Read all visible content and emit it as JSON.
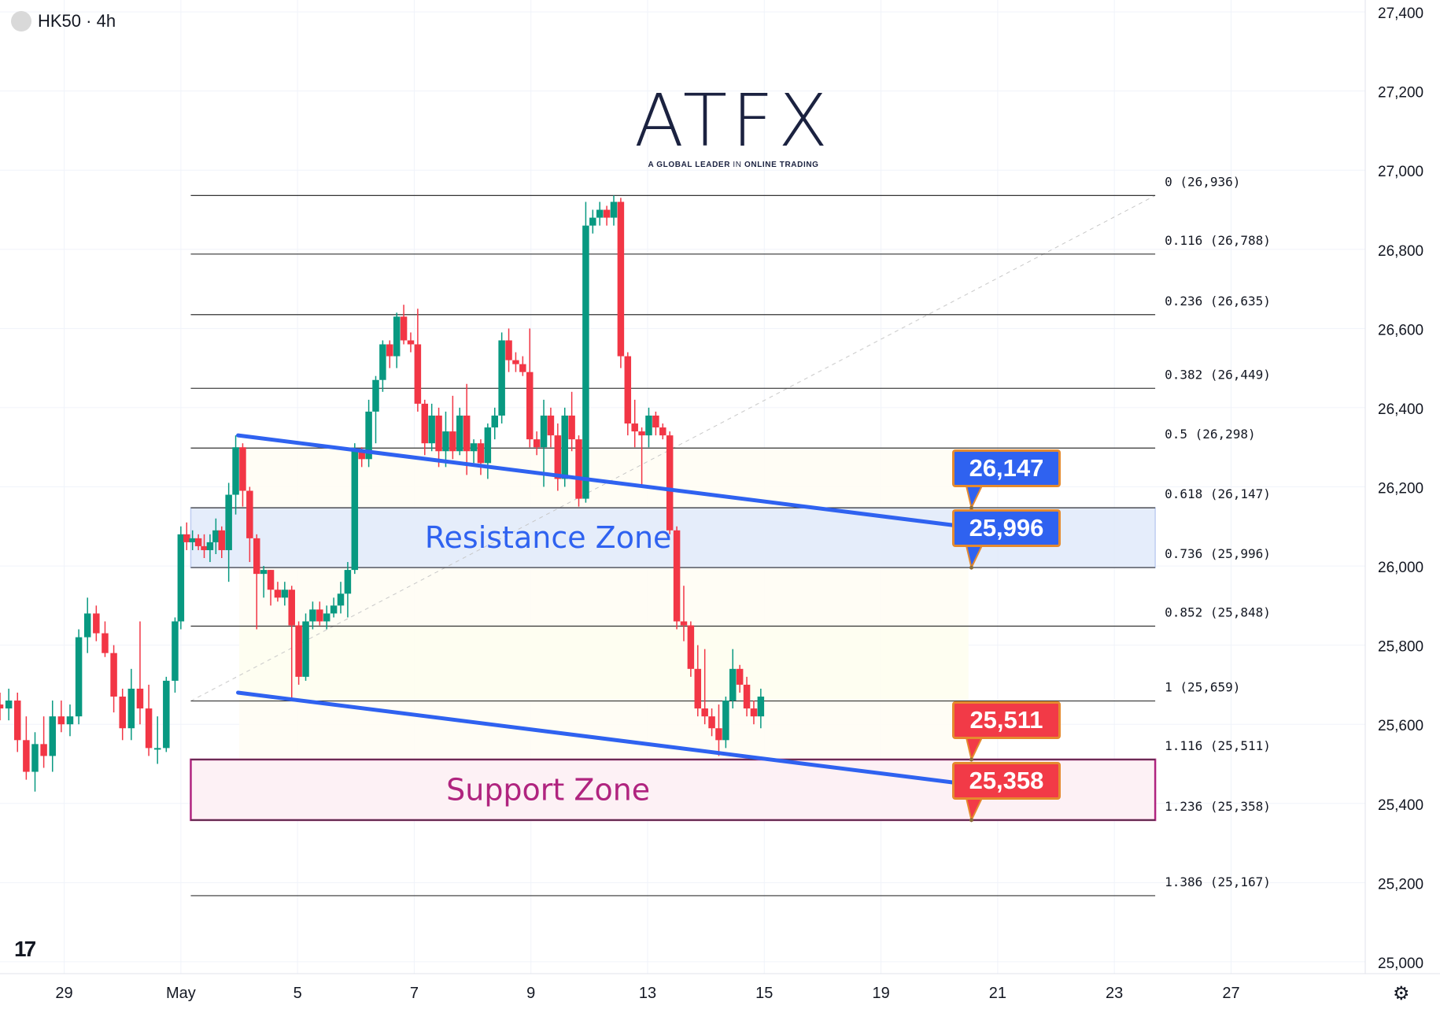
{
  "header": {
    "symbol": "HK50 · 4h"
  },
  "watermark": {
    "brand": "ATFX",
    "tagline_bold_1": "A GLOBAL LEADER",
    "tagline_thin": "IN",
    "tagline_bold_2": "ONLINE TRADING"
  },
  "colors": {
    "up": "#089981",
    "down": "#f23645",
    "trendline": "#2f62f0",
    "resistance": "#2f62f0",
    "support": "#b0247f",
    "callout_border": "#e58a2e"
  },
  "zones": {
    "resistance": {
      "label": "Resistance Zone",
      "top": 26147,
      "bottom": 25996
    },
    "support": {
      "label": "Support Zone",
      "top": 25511,
      "bottom": 25358
    }
  },
  "callouts": [
    {
      "text": "26,147",
      "value": 26147,
      "color": "blue"
    },
    {
      "text": "25,996",
      "value": 25996,
      "color": "blue"
    },
    {
      "text": "25,511",
      "value": 25511,
      "color": "red"
    },
    {
      "text": "25,358",
      "value": 25358,
      "color": "red"
    }
  ],
  "chart_data": {
    "type": "candlestick",
    "title": "HK50 · 4h",
    "x_axis": {
      "ticks": [
        {
          "label": "29",
          "day": -2
        },
        {
          "label": "May",
          "day": 0
        },
        {
          "label": "5",
          "day": 2
        },
        {
          "label": "7",
          "day": 4
        },
        {
          "label": "9",
          "day": 6
        },
        {
          "label": "13",
          "day": 8
        },
        {
          "label": "15",
          "day": 10
        },
        {
          "label": "19",
          "day": 12
        },
        {
          "label": "21",
          "day": 14
        },
        {
          "label": "23",
          "day": 16
        },
        {
          "label": "27",
          "day": 18
        }
      ],
      "range_days": [
        -3.1,
        20.3
      ]
    },
    "y_axis": {
      "range": [
        24970,
        27430
      ],
      "ticks": [
        {
          "value": 27400,
          "label": "27,400"
        },
        {
          "value": 27200,
          "label": "27,200"
        },
        {
          "value": 27000,
          "label": "27,000"
        },
        {
          "value": 26800,
          "label": "26,800"
        },
        {
          "value": 26600,
          "label": "26,600"
        },
        {
          "value": 26400,
          "label": "26,400"
        },
        {
          "value": 26200,
          "label": "26,200"
        },
        {
          "value": 26000,
          "label": "26,000"
        },
        {
          "value": 25800,
          "label": "25,800"
        },
        {
          "value": 25600,
          "label": "25,600"
        },
        {
          "value": 25400,
          "label": "25,400"
        },
        {
          "value": 25200,
          "label": "25,200"
        },
        {
          "value": 25000,
          "label": "25,000"
        }
      ]
    },
    "grid": true,
    "fibonacci": {
      "levels": [
        {
          "label": "0 (26,936)",
          "value": 26936
        },
        {
          "label": "0.116 (26,788)",
          "value": 26788
        },
        {
          "label": "0.236 (26,635)",
          "value": 26635
        },
        {
          "label": "0.382 (26,449)",
          "value": 26449
        },
        {
          "label": "0.5 (26,298)",
          "value": 26298
        },
        {
          "label": "0.618 (26,147)",
          "value": 26147
        },
        {
          "label": "0.736 (25,996)",
          "value": 25996
        },
        {
          "label": "0.852 (25,848)",
          "value": 25848
        },
        {
          "label": "1 (25,659)",
          "value": 25659
        },
        {
          "label": "1.116 (25,511)",
          "value": 25511
        },
        {
          "label": "1.236 (25,358)",
          "value": 25358
        },
        {
          "label": "1.386 (25,167)",
          "value": 25167
        }
      ],
      "start_day": 0.17,
      "end_day": 16.7,
      "anchor_low": {
        "day": 0.17,
        "value": 25659
      },
      "anchor_high": {
        "day": 16.7,
        "value": 26936
      }
    },
    "trendlines": [
      {
        "from": {
          "day": 0.98,
          "value": 26330
        },
        "to": {
          "day": 13.4,
          "value": 26100
        }
      },
      {
        "from": {
          "day": 0.98,
          "value": 25680
        },
        "to": {
          "day": 13.4,
          "value": 25450
        }
      }
    ],
    "candles": [
      {
        "day": -3.1,
        "o": 25650,
        "h": 25680,
        "l": 25610,
        "c": 25640
      },
      {
        "day": -2.95,
        "o": 25640,
        "h": 25690,
        "l": 25610,
        "c": 25660
      },
      {
        "day": -2.8,
        "o": 25660,
        "h": 25680,
        "l": 25530,
        "c": 25560
      },
      {
        "day": -2.65,
        "o": 25560,
        "h": 25620,
        "l": 25460,
        "c": 25480
      },
      {
        "day": -2.5,
        "o": 25480,
        "h": 25580,
        "l": 25430,
        "c": 25550
      },
      {
        "day": -2.35,
        "o": 25550,
        "h": 25620,
        "l": 25490,
        "c": 25520
      },
      {
        "day": -2.2,
        "o": 25520,
        "h": 25660,
        "l": 25480,
        "c": 25620
      },
      {
        "day": -2.05,
        "o": 25620,
        "h": 25660,
        "l": 25580,
        "c": 25600
      },
      {
        "day": -1.9,
        "o": 25600,
        "h": 25650,
        "l": 25570,
        "c": 25620
      },
      {
        "day": -1.75,
        "o": 25620,
        "h": 25840,
        "l": 25600,
        "c": 25820
      },
      {
        "day": -1.6,
        "o": 25820,
        "h": 25920,
        "l": 25780,
        "c": 25880
      },
      {
        "day": -1.45,
        "o": 25880,
        "h": 25900,
        "l": 25810,
        "c": 25830
      },
      {
        "day": -1.3,
        "o": 25830,
        "h": 25860,
        "l": 25770,
        "c": 25780
      },
      {
        "day": -1.15,
        "o": 25780,
        "h": 25800,
        "l": 25630,
        "c": 25670
      },
      {
        "day": -1.0,
        "o": 25670,
        "h": 25690,
        "l": 25560,
        "c": 25590
      },
      {
        "day": -0.85,
        "o": 25590,
        "h": 25740,
        "l": 25560,
        "c": 25690
      },
      {
        "day": -0.7,
        "o": 25690,
        "h": 25860,
        "l": 25600,
        "c": 25640
      },
      {
        "day": -0.55,
        "o": 25640,
        "h": 25700,
        "l": 25520,
        "c": 25540
      },
      {
        "day": -0.4,
        "o": 25540,
        "h": 25620,
        "l": 25500,
        "c": 25540
      },
      {
        "day": -0.25,
        "o": 25540,
        "h": 25720,
        "l": 25530,
        "c": 25710
      },
      {
        "day": -0.1,
        "o": 25710,
        "h": 25870,
        "l": 25680,
        "c": 25860
      },
      {
        "day": 0.0,
        "o": 25860,
        "h": 26100,
        "l": 25840,
        "c": 26080
      },
      {
        "day": 0.1,
        "o": 26080,
        "h": 26110,
        "l": 26040,
        "c": 26060
      },
      {
        "day": 0.2,
        "o": 26060,
        "h": 26090,
        "l": 26040,
        "c": 26070
      },
      {
        "day": 0.3,
        "o": 26070,
        "h": 26080,
        "l": 26040,
        "c": 26050
      },
      {
        "day": 0.4,
        "o": 26050,
        "h": 26080,
        "l": 26020,
        "c": 26040
      },
      {
        "day": 0.5,
        "o": 26040,
        "h": 26080,
        "l": 26010,
        "c": 26060
      },
      {
        "day": 0.6,
        "o": 26060,
        "h": 26120,
        "l": 26030,
        "c": 26090
      },
      {
        "day": 0.7,
        "o": 26090,
        "h": 26100,
        "l": 26020,
        "c": 26040
      },
      {
        "day": 0.82,
        "o": 26040,
        "h": 26210,
        "l": 25960,
        "c": 26180
      },
      {
        "day": 0.94,
        "o": 26180,
        "h": 26330,
        "l": 26130,
        "c": 26300
      },
      {
        "day": 1.06,
        "o": 26300,
        "h": 26310,
        "l": 26150,
        "c": 26190
      },
      {
        "day": 1.18,
        "o": 26190,
        "h": 26200,
        "l": 26010,
        "c": 26070
      },
      {
        "day": 1.3,
        "o": 26070,
        "h": 26080,
        "l": 25840,
        "c": 25980
      },
      {
        "day": 1.42,
        "o": 25980,
        "h": 26000,
        "l": 25920,
        "c": 25990
      },
      {
        "day": 1.54,
        "o": 25990,
        "h": 25990,
        "l": 25900,
        "c": 25940
      },
      {
        "day": 1.66,
        "o": 25940,
        "h": 25960,
        "l": 25910,
        "c": 25920
      },
      {
        "day": 1.78,
        "o": 25920,
        "h": 25960,
        "l": 25900,
        "c": 25940
      },
      {
        "day": 1.9,
        "o": 25940,
        "h": 25950,
        "l": 25660,
        "c": 25850
      },
      {
        "day": 2.02,
        "o": 25850,
        "h": 25860,
        "l": 25700,
        "c": 25720
      },
      {
        "day": 2.14,
        "o": 25720,
        "h": 25880,
        "l": 25710,
        "c": 25860
      },
      {
        "day": 2.26,
        "o": 25860,
        "h": 25910,
        "l": 25840,
        "c": 25890
      },
      {
        "day": 2.38,
        "o": 25890,
        "h": 25910,
        "l": 25850,
        "c": 25860
      },
      {
        "day": 2.5,
        "o": 25860,
        "h": 25900,
        "l": 25840,
        "c": 25880
      },
      {
        "day": 2.62,
        "o": 25880,
        "h": 25920,
        "l": 25870,
        "c": 25900
      },
      {
        "day": 2.74,
        "o": 25900,
        "h": 25960,
        "l": 25880,
        "c": 25930
      },
      {
        "day": 2.86,
        "o": 25930,
        "h": 26010,
        "l": 25870,
        "c": 25990
      },
      {
        "day": 2.98,
        "o": 25990,
        "h": 26310,
        "l": 25980,
        "c": 26290
      },
      {
        "day": 3.1,
        "o": 26290,
        "h": 26300,
        "l": 26250,
        "c": 26270
      },
      {
        "day": 3.22,
        "o": 26270,
        "h": 26420,
        "l": 26250,
        "c": 26390
      },
      {
        "day": 3.34,
        "o": 26390,
        "h": 26480,
        "l": 26310,
        "c": 26470
      },
      {
        "day": 3.46,
        "o": 26470,
        "h": 26570,
        "l": 26440,
        "c": 26560
      },
      {
        "day": 3.58,
        "o": 26560,
        "h": 26570,
        "l": 26500,
        "c": 26530
      },
      {
        "day": 3.7,
        "o": 26530,
        "h": 26640,
        "l": 26500,
        "c": 26630
      },
      {
        "day": 3.82,
        "o": 26630,
        "h": 26660,
        "l": 26560,
        "c": 26570
      },
      {
        "day": 3.94,
        "o": 26570,
        "h": 26590,
        "l": 26540,
        "c": 26560
      },
      {
        "day": 4.06,
        "o": 26560,
        "h": 26650,
        "l": 26390,
        "c": 26410
      },
      {
        "day": 4.18,
        "o": 26410,
        "h": 26420,
        "l": 26280,
        "c": 26310
      },
      {
        "day": 4.3,
        "o": 26310,
        "h": 26410,
        "l": 26290,
        "c": 26380
      },
      {
        "day": 4.42,
        "o": 26380,
        "h": 26400,
        "l": 26250,
        "c": 26290
      },
      {
        "day": 4.54,
        "o": 26290,
        "h": 26390,
        "l": 26250,
        "c": 26340
      },
      {
        "day": 4.66,
        "o": 26340,
        "h": 26430,
        "l": 26270,
        "c": 26290
      },
      {
        "day": 4.78,
        "o": 26290,
        "h": 26400,
        "l": 26280,
        "c": 26380
      },
      {
        "day": 4.9,
        "o": 26380,
        "h": 26460,
        "l": 26230,
        "c": 26290
      },
      {
        "day": 5.02,
        "o": 26290,
        "h": 26320,
        "l": 26260,
        "c": 26310
      },
      {
        "day": 5.14,
        "o": 26310,
        "h": 26320,
        "l": 26230,
        "c": 26260
      },
      {
        "day": 5.26,
        "o": 26260,
        "h": 26360,
        "l": 26220,
        "c": 26350
      },
      {
        "day": 5.38,
        "o": 26350,
        "h": 26400,
        "l": 26320,
        "c": 26380
      },
      {
        "day": 5.5,
        "o": 26380,
        "h": 26590,
        "l": 26360,
        "c": 26570
      },
      {
        "day": 5.62,
        "o": 26570,
        "h": 26600,
        "l": 26490,
        "c": 26520
      },
      {
        "day": 5.74,
        "o": 26520,
        "h": 26540,
        "l": 26490,
        "c": 26510
      },
      {
        "day": 5.86,
        "o": 26510,
        "h": 26530,
        "l": 26480,
        "c": 26490
      },
      {
        "day": 5.98,
        "o": 26490,
        "h": 26600,
        "l": 26300,
        "c": 26320
      },
      {
        "day": 6.1,
        "o": 26320,
        "h": 26340,
        "l": 26280,
        "c": 26300
      },
      {
        "day": 6.22,
        "o": 26300,
        "h": 26420,
        "l": 26200,
        "c": 26380
      },
      {
        "day": 6.34,
        "o": 26380,
        "h": 26400,
        "l": 26300,
        "c": 26330
      },
      {
        "day": 6.46,
        "o": 26330,
        "h": 26360,
        "l": 26190,
        "c": 26220
      },
      {
        "day": 6.58,
        "o": 26220,
        "h": 26400,
        "l": 26200,
        "c": 26380
      },
      {
        "day": 6.7,
        "o": 26380,
        "h": 26440,
        "l": 26290,
        "c": 26320
      },
      {
        "day": 6.82,
        "o": 26320,
        "h": 26330,
        "l": 26150,
        "c": 26170
      },
      {
        "day": 6.94,
        "o": 26170,
        "h": 26920,
        "l": 26160,
        "c": 26860
      },
      {
        "day": 7.06,
        "o": 26860,
        "h": 26900,
        "l": 26840,
        "c": 26880
      },
      {
        "day": 7.18,
        "o": 26880,
        "h": 26920,
        "l": 26860,
        "c": 26900
      },
      {
        "day": 7.3,
        "o": 26900,
        "h": 26910,
        "l": 26860,
        "c": 26880
      },
      {
        "day": 7.42,
        "o": 26880,
        "h": 26936,
        "l": 26860,
        "c": 26920
      },
      {
        "day": 7.54,
        "o": 26920,
        "h": 26930,
        "l": 26500,
        "c": 26530
      },
      {
        "day": 7.66,
        "o": 26530,
        "h": 26540,
        "l": 26330,
        "c": 26360
      },
      {
        "day": 7.78,
        "o": 26360,
        "h": 26420,
        "l": 26300,
        "c": 26340
      },
      {
        "day": 7.9,
        "o": 26340,
        "h": 26350,
        "l": 26200,
        "c": 26330
      },
      {
        "day": 8.02,
        "o": 26330,
        "h": 26400,
        "l": 26300,
        "c": 26380
      },
      {
        "day": 8.14,
        "o": 26380,
        "h": 26390,
        "l": 26330,
        "c": 26350
      },
      {
        "day": 8.26,
        "o": 26350,
        "h": 26360,
        "l": 26320,
        "c": 26330
      },
      {
        "day": 8.38,
        "o": 26330,
        "h": 26340,
        "l": 26080,
        "c": 26090
      },
      {
        "day": 8.5,
        "o": 26090,
        "h": 26100,
        "l": 25840,
        "c": 25860
      },
      {
        "day": 8.62,
        "o": 25860,
        "h": 25950,
        "l": 25810,
        "c": 25850
      },
      {
        "day": 8.74,
        "o": 25850,
        "h": 25860,
        "l": 25720,
        "c": 25740
      },
      {
        "day": 8.86,
        "o": 25740,
        "h": 25800,
        "l": 25620,
        "c": 25640
      },
      {
        "day": 8.98,
        "o": 25640,
        "h": 25790,
        "l": 25600,
        "c": 25620
      },
      {
        "day": 9.1,
        "o": 25620,
        "h": 25640,
        "l": 25570,
        "c": 25590
      },
      {
        "day": 9.22,
        "o": 25590,
        "h": 25650,
        "l": 25520,
        "c": 25560
      },
      {
        "day": 9.34,
        "o": 25560,
        "h": 25670,
        "l": 25540,
        "c": 25660
      },
      {
        "day": 9.46,
        "o": 25660,
        "h": 25790,
        "l": 25640,
        "c": 25740
      },
      {
        "day": 9.58,
        "o": 25740,
        "h": 25750,
        "l": 25680,
        "c": 25700
      },
      {
        "day": 9.7,
        "o": 25700,
        "h": 25720,
        "l": 25620,
        "c": 25640
      },
      {
        "day": 9.82,
        "o": 25640,
        "h": 25660,
        "l": 25600,
        "c": 25620
      },
      {
        "day": 9.94,
        "o": 25620,
        "h": 25690,
        "l": 25590,
        "c": 25670
      }
    ]
  },
  "footer": {
    "tv_logo": "17",
    "settings_icon": "gear-icon"
  }
}
